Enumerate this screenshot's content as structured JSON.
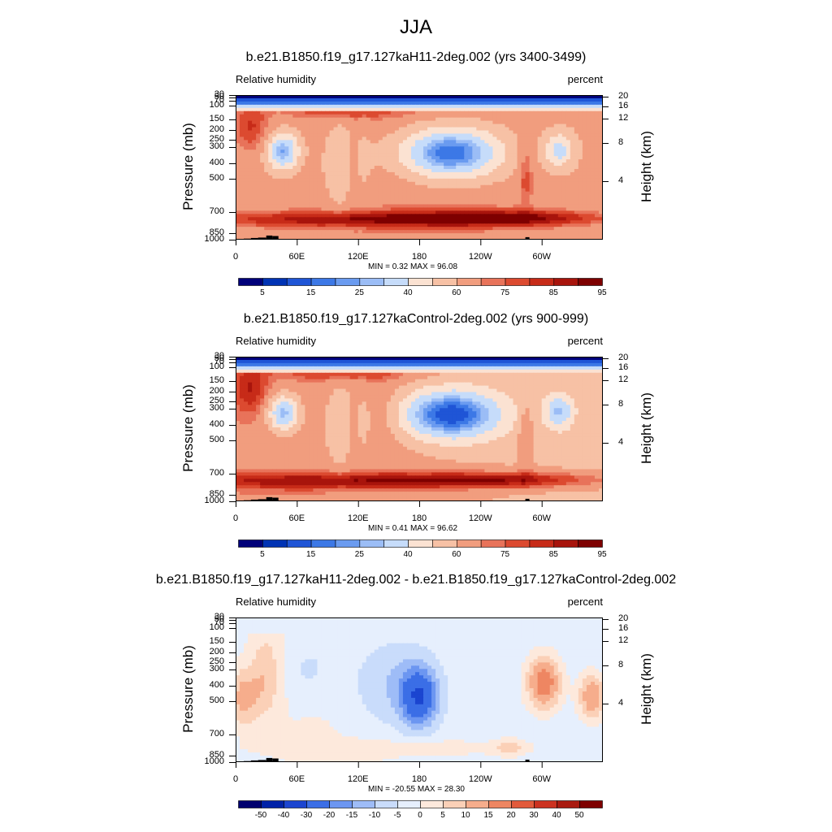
{
  "figure": {
    "title": "JJA",
    "colors": {
      "abs_levels": [
        "#00007a",
        "#0033b4",
        "#1f55d6",
        "#3c78e6",
        "#6a9bf0",
        "#9bbdf6",
        "#c6dcfa",
        "#fbe2d2",
        "#f7c1a5",
        "#f19d7e",
        "#e8735a",
        "#dc4a30",
        "#c72b18",
        "#a8140c",
        "#7e0000"
      ],
      "diff_levels": [
        "#00006f",
        "#0022a8",
        "#1b45d0",
        "#3b6ee6",
        "#6c96f1",
        "#9ebcf7",
        "#c9dcfb",
        "#e6effd",
        "#fde9dc",
        "#fbd0b7",
        "#f6ad8c",
        "#ee8662",
        "#e25a3b",
        "#cc3220",
        "#a91a10",
        "#7e0000"
      ],
      "terrain": "#000000"
    },
    "axes": {
      "pressure_ticks": [
        "30",
        "50",
        "70",
        "100",
        "150",
        "200",
        "250",
        "300",
        "400",
        "500",
        "700",
        "850",
        "1000"
      ],
      "height_ticks": [
        "20",
        "16",
        "12",
        "8",
        "4"
      ],
      "lon_ticks": [
        "0",
        "60E",
        "120E",
        "180",
        "120W",
        "60W"
      ],
      "ylabel_left": "Pressure (mb)",
      "ylabel_right": "Height (km)"
    }
  },
  "chart_data": [
    {
      "type": "heatmap",
      "title": "b.e21.B1850.f19_g17.127kaH11-2deg.002 (yrs 3400-3499)",
      "left_label": "Relative humidity",
      "right_label": "percent",
      "xlabel": "",
      "ylabel": "Pressure (mb)",
      "ylabel_right": "Height (km)",
      "x_range": [
        0,
        360
      ],
      "y_range": [
        1000,
        30
      ],
      "stats": "MIN =   0.32  MAX =  96.08",
      "colorbar_labels": [
        "5",
        "15",
        "25",
        "40",
        "60",
        "75",
        "85",
        "95"
      ]
    },
    {
      "type": "heatmap",
      "title": "b.e21.B1850.f19_g17.127kaControl-2deg.002 (yrs 900-999)",
      "left_label": "Relative humidity",
      "right_label": "percent",
      "xlabel": "",
      "ylabel": "Pressure (mb)",
      "ylabel_right": "Height (km)",
      "x_range": [
        0,
        360
      ],
      "y_range": [
        1000,
        30
      ],
      "stats": "MIN =   0.41  MAX =  96.62",
      "colorbar_labels": [
        "5",
        "15",
        "25",
        "40",
        "60",
        "75",
        "85",
        "95"
      ]
    },
    {
      "type": "heatmap",
      "title": "b.e21.B1850.f19_g17.127kaH11-2deg.002 - b.e21.B1850.f19_g17.127kaControl-2deg.002",
      "left_label": "Relative humidity",
      "right_label": "percent",
      "xlabel": "",
      "ylabel": "Pressure (mb)",
      "ylabel_right": "Height (km)",
      "x_range": [
        0,
        360
      ],
      "y_range": [
        1000,
        30
      ],
      "stats": "MIN = -20.55  MAX =  28.30",
      "colorbar_labels": [
        "-50",
        "-40",
        "-30",
        "-20",
        "-15",
        "-10",
        "-5",
        "0",
        "5",
        "10",
        "15",
        "20",
        "30",
        "40",
        "50"
      ]
    }
  ]
}
